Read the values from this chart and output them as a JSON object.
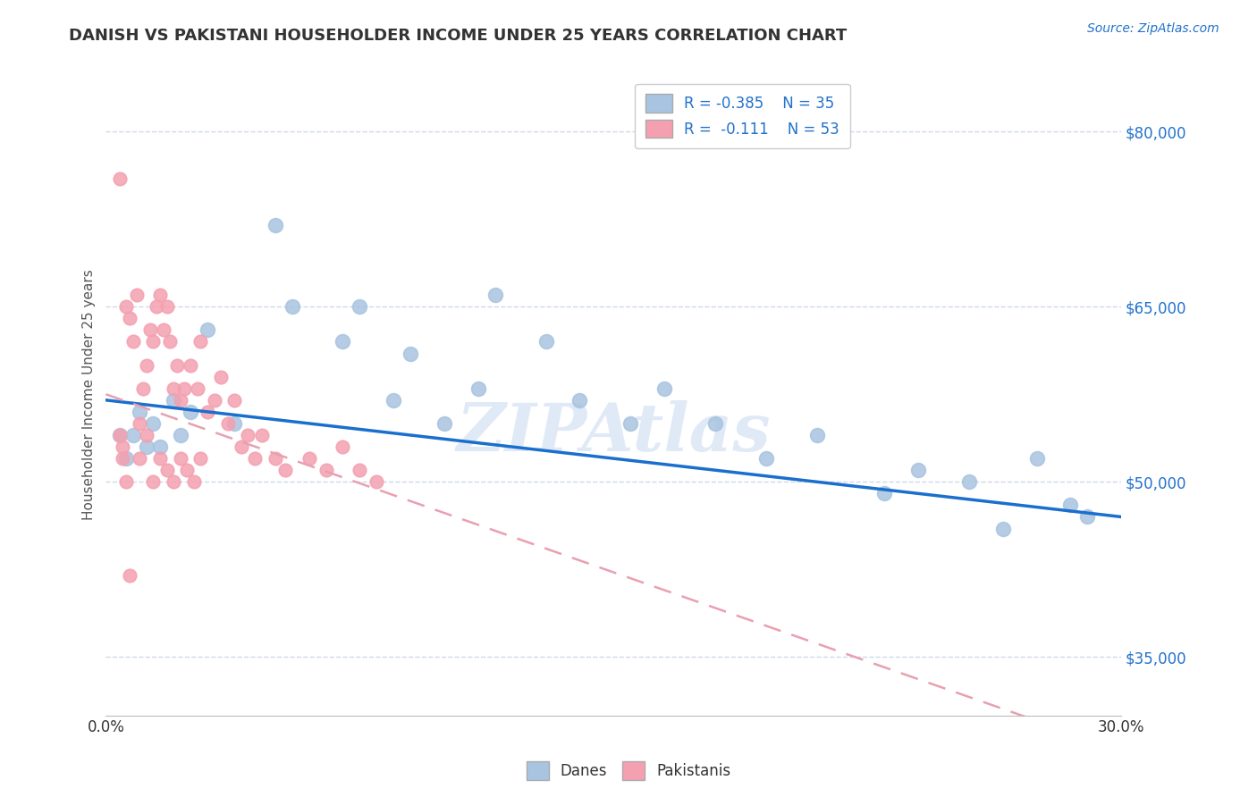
{
  "title": "DANISH VS PAKISTANI HOUSEHOLDER INCOME UNDER 25 YEARS CORRELATION CHART",
  "source": "Source: ZipAtlas.com",
  "ylabel": "Householder Income Under 25 years",
  "xlim": [
    0.0,
    0.3
  ],
  "ylim": [
    30000,
    85000
  ],
  "yticks": [
    35000,
    50000,
    65000,
    80000
  ],
  "ytick_labels": [
    "$35,000",
    "$50,000",
    "$65,000",
    "$80,000"
  ],
  "legend_r_danes": "R = -0.385",
  "legend_n_danes": "N = 35",
  "legend_r_pakis": "R =  -0.111",
  "legend_n_pakis": "N = 53",
  "danes_color": "#a8c4e0",
  "pakis_color": "#f4a0b0",
  "trend_danes_color": "#1a6fcc",
  "trend_pakis_color": "#e8a0b0",
  "watermark": "ZIPAtlas",
  "background_color": "#ffffff",
  "grid_color": "#d0d8e8",
  "danes_x": [
    0.004,
    0.006,
    0.008,
    0.01,
    0.012,
    0.014,
    0.016,
    0.02,
    0.022,
    0.025,
    0.03,
    0.038,
    0.05,
    0.055,
    0.07,
    0.075,
    0.085,
    0.09,
    0.1,
    0.11,
    0.115,
    0.13,
    0.14,
    0.155,
    0.165,
    0.18,
    0.195,
    0.21,
    0.23,
    0.24,
    0.255,
    0.265,
    0.275,
    0.285,
    0.29
  ],
  "danes_y": [
    54000,
    52000,
    54000,
    56000,
    53000,
    55000,
    53000,
    57000,
    54000,
    56000,
    63000,
    55000,
    72000,
    65000,
    62000,
    65000,
    57000,
    61000,
    55000,
    58000,
    66000,
    62000,
    57000,
    55000,
    58000,
    55000,
    52000,
    54000,
    49000,
    51000,
    50000,
    46000,
    52000,
    48000,
    47000
  ],
  "pakis_x": [
    0.004,
    0.005,
    0.006,
    0.007,
    0.008,
    0.009,
    0.01,
    0.011,
    0.012,
    0.013,
    0.014,
    0.015,
    0.016,
    0.017,
    0.018,
    0.019,
    0.02,
    0.021,
    0.022,
    0.023,
    0.025,
    0.027,
    0.028,
    0.03,
    0.032,
    0.034,
    0.036,
    0.038,
    0.04,
    0.042,
    0.044,
    0.046,
    0.05,
    0.053,
    0.06,
    0.065,
    0.07,
    0.075,
    0.08,
    0.01,
    0.012,
    0.014,
    0.016,
    0.018,
    0.02,
    0.022,
    0.024,
    0.026,
    0.028,
    0.004,
    0.005,
    0.006,
    0.007
  ],
  "pakis_y": [
    54000,
    52000,
    65000,
    64000,
    62000,
    66000,
    55000,
    58000,
    60000,
    63000,
    62000,
    65000,
    66000,
    63000,
    65000,
    62000,
    58000,
    60000,
    57000,
    58000,
    60000,
    58000,
    62000,
    56000,
    57000,
    59000,
    55000,
    57000,
    53000,
    54000,
    52000,
    54000,
    52000,
    51000,
    52000,
    51000,
    53000,
    51000,
    50000,
    52000,
    54000,
    50000,
    52000,
    51000,
    50000,
    52000,
    51000,
    50000,
    52000,
    76000,
    53000,
    50000,
    42000
  ]
}
